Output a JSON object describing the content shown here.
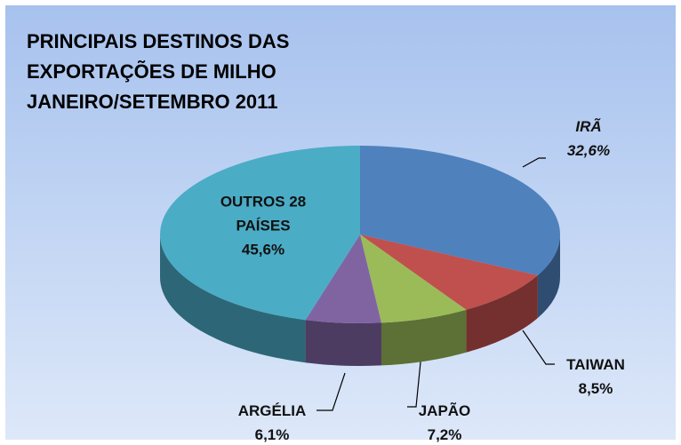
{
  "chart_data": {
    "type": "pie3d",
    "title": "PRINCIPAIS DESTINOS DAS\nEXPORTAÇÕES DE  MILHO\nJANEIRO/SETEMBRO 2011",
    "categories": [
      "IRÃ",
      "TAIWAN",
      "JAPÃO",
      "ARGÉLIA",
      "OUTROS 28 PAÍSES"
    ],
    "values": [
      32.6,
      8.5,
      7.2,
      6.1,
      45.6
    ],
    "value_labels": [
      "32,6%",
      "8,5%",
      "7,2%",
      "6,1%",
      "45,6%"
    ],
    "colors": [
      "#4f81bd",
      "#c0504d",
      "#9bbb59",
      "#8064a2",
      "#4bacc6"
    ]
  }
}
